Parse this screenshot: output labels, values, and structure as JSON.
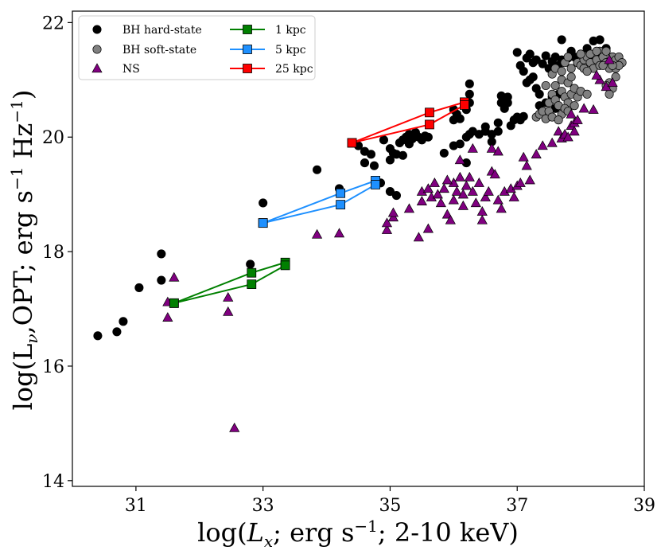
{
  "chart_data": {
    "type": "scatter",
    "title": "",
    "xlabel": "log(L_x; erg s^-1; 2-10 keV)",
    "ylabel": "log(L_ν,OPT; erg s^-1 Hz^-1)",
    "xlim": [
      30,
      39
    ],
    "ylim": [
      13.9,
      22.2
    ],
    "xticks": [
      31,
      33,
      35,
      37,
      39
    ],
    "yticks": [
      14,
      16,
      18,
      20,
      22
    ],
    "legend_position": "top-left",
    "legend": [
      {
        "label": "BH hard-state",
        "marker": "circle",
        "color": "#000000"
      },
      {
        "label": "BH soft-state",
        "marker": "circle",
        "color": "#808080"
      },
      {
        "label": "NS",
        "marker": "triangle",
        "color": "#800080"
      },
      {
        "label": "1 kpc",
        "marker": "square-line",
        "color": "#008000"
      },
      {
        "label": "5 kpc",
        "marker": "square-line",
        "color": "#1E90FF"
      },
      {
        "label": "25 kpc",
        "marker": "square-line",
        "color": "#FF0000"
      }
    ],
    "series": [
      {
        "name": "BH hard-state",
        "marker": "circle",
        "color": "#000000",
        "points": [
          [
            30.4,
            16.53
          ],
          [
            30.7,
            16.6
          ],
          [
            30.8,
            16.78
          ],
          [
            31.05,
            17.37
          ],
          [
            31.4,
            17.96
          ],
          [
            31.4,
            17.5
          ],
          [
            32.8,
            17.78
          ],
          [
            33.0,
            18.85
          ],
          [
            33.85,
            19.43
          ],
          [
            34.2,
            19.1
          ],
          [
            34.5,
            19.85
          ],
          [
            34.6,
            19.55
          ],
          [
            34.6,
            19.75
          ],
          [
            34.7,
            19.7
          ],
          [
            34.75,
            19.5
          ],
          [
            34.85,
            19.2
          ],
          [
            34.9,
            19.95
          ],
          [
            35.0,
            19.8
          ],
          [
            35.0,
            19.6
          ],
          [
            35.05,
            19.72
          ],
          [
            35.0,
            19.05
          ],
          [
            35.1,
            18.98
          ],
          [
            35.1,
            19.7
          ],
          [
            35.15,
            19.9
          ],
          [
            35.2,
            19.95
          ],
          [
            35.25,
            20.0
          ],
          [
            35.3,
            20.05
          ],
          [
            35.3,
            19.88
          ],
          [
            35.35,
            19.97
          ],
          [
            35.4,
            20.08
          ],
          [
            35.45,
            20.0
          ],
          [
            35.5,
            19.95
          ],
          [
            35.55,
            20.02
          ],
          [
            35.6,
            20.0
          ],
          [
            35.2,
            19.68
          ],
          [
            35.85,
            19.72
          ],
          [
            36.0,
            19.85
          ],
          [
            36.0,
            20.3
          ],
          [
            36.0,
            20.48
          ],
          [
            36.1,
            19.88
          ],
          [
            36.2,
            20.0
          ],
          [
            36.2,
            19.55
          ],
          [
            36.25,
            20.05
          ],
          [
            36.3,
            20.1
          ],
          [
            36.25,
            20.6
          ],
          [
            36.25,
            20.75
          ],
          [
            36.25,
            20.93
          ],
          [
            36.2,
            20.48
          ],
          [
            36.4,
            20.05
          ],
          [
            36.5,
            20.1
          ],
          [
            36.5,
            20.18
          ],
          [
            36.6,
            19.92
          ],
          [
            36.6,
            20.05
          ],
          [
            36.7,
            20.1
          ],
          [
            36.7,
            20.25
          ],
          [
            36.75,
            20.6
          ],
          [
            36.75,
            20.72
          ],
          [
            36.8,
            20.5
          ],
          [
            36.85,
            20.6
          ],
          [
            36.85,
            20.7
          ],
          [
            36.9,
            20.2
          ],
          [
            36.95,
            20.3
          ],
          [
            37.0,
            20.35
          ],
          [
            37.05,
            20.3
          ],
          [
            37.1,
            20.36
          ],
          [
            37.0,
            21.48
          ],
          [
            37.05,
            21.25
          ],
          [
            37.1,
            21.15
          ],
          [
            37.15,
            21.38
          ],
          [
            37.2,
            21.45
          ],
          [
            37.25,
            21.05
          ],
          [
            37.25,
            21.3
          ],
          [
            37.3,
            21.35
          ],
          [
            37.4,
            21.28
          ],
          [
            37.45,
            21.42
          ],
          [
            37.5,
            21.2
          ],
          [
            37.55,
            21.32
          ],
          [
            37.6,
            21.4
          ],
          [
            37.65,
            21.25
          ],
          [
            37.7,
            21.7
          ],
          [
            37.7,
            21.35
          ],
          [
            37.8,
            21.38
          ],
          [
            37.85,
            21.5
          ],
          [
            37.9,
            21.4
          ],
          [
            37.95,
            21.3
          ],
          [
            38.0,
            21.45
          ],
          [
            38.05,
            21.38
          ],
          [
            38.1,
            21.55
          ],
          [
            38.15,
            21.35
          ],
          [
            38.2,
            21.68
          ],
          [
            38.25,
            21.48
          ],
          [
            38.3,
            21.7
          ],
          [
            38.35,
            21.4
          ],
          [
            38.4,
            21.55
          ],
          [
            38.45,
            21.3
          ],
          [
            38.5,
            21.4
          ],
          [
            37.35,
            20.55
          ],
          [
            37.45,
            20.6
          ],
          [
            37.4,
            20.45
          ],
          [
            37.55,
            20.7
          ],
          [
            37.65,
            20.75
          ],
          [
            37.6,
            20.5
          ],
          [
            37.15,
            20.95
          ],
          [
            37.2,
            21.0
          ],
          [
            37.3,
            20.85
          ],
          [
            37.35,
            20.75
          ],
          [
            36.1,
            20.32
          ],
          [
            36.05,
            20.4
          ]
        ]
      },
      {
        "name": "BH soft-state",
        "marker": "circle",
        "color": "#808080",
        "points": [
          [
            37.3,
            20.35
          ],
          [
            37.35,
            20.4
          ],
          [
            37.4,
            20.45
          ],
          [
            37.45,
            20.32
          ],
          [
            37.5,
            20.6
          ],
          [
            37.55,
            20.75
          ],
          [
            37.6,
            20.65
          ],
          [
            37.6,
            20.9
          ],
          [
            37.65,
            20.55
          ],
          [
            37.7,
            20.8
          ],
          [
            37.7,
            21.0
          ],
          [
            37.75,
            20.7
          ],
          [
            37.8,
            20.6
          ],
          [
            37.8,
            20.95
          ],
          [
            37.85,
            20.75
          ],
          [
            37.85,
            21.05
          ],
          [
            37.9,
            20.85
          ],
          [
            37.95,
            20.7
          ],
          [
            37.95,
            21.3
          ],
          [
            38.0,
            20.8
          ],
          [
            38.0,
            21.25
          ],
          [
            38.05,
            21.35
          ],
          [
            38.1,
            20.75
          ],
          [
            38.1,
            21.4
          ],
          [
            38.15,
            21.3
          ],
          [
            38.2,
            21.2
          ],
          [
            38.2,
            21.45
          ],
          [
            38.25,
            21.35
          ],
          [
            38.3,
            21.25
          ],
          [
            38.3,
            21.5
          ],
          [
            38.35,
            21.4
          ],
          [
            38.4,
            21.3
          ],
          [
            38.4,
            21.5
          ],
          [
            38.45,
            21.2
          ],
          [
            38.5,
            21.4
          ],
          [
            38.55,
            21.35
          ],
          [
            38.6,
            21.4
          ],
          [
            38.65,
            21.3
          ],
          [
            38.45,
            20.95
          ],
          [
            38.5,
            20.85
          ],
          [
            38.55,
            21.05
          ],
          [
            38.45,
            20.75
          ],
          [
            38.4,
            20.9
          ],
          [
            37.7,
            20.4
          ],
          [
            37.75,
            20.5
          ],
          [
            37.8,
            20.45
          ],
          [
            37.5,
            20.45
          ],
          [
            37.55,
            20.35
          ],
          [
            37.9,
            20.55
          ],
          [
            37.85,
            21.2
          ],
          [
            37.75,
            21.3
          ],
          [
            37.8,
            21.4
          ],
          [
            37.55,
            21.1
          ],
          [
            37.6,
            21.2
          ],
          [
            38.0,
            21.45
          ],
          [
            38.05,
            21.2
          ],
          [
            38.1,
            21.15
          ],
          [
            38.15,
            21.45
          ],
          [
            38.25,
            21.5
          ],
          [
            38.35,
            21.25
          ],
          [
            38.55,
            21.2
          ],
          [
            38.6,
            21.25
          ],
          [
            38.5,
            21.25
          ],
          [
            37.65,
            20.3
          ],
          [
            37.45,
            20.9
          ],
          [
            37.7,
            21.15
          ]
        ]
      },
      {
        "name": "NS",
        "marker": "triangle",
        "color": "#800080",
        "points": [
          [
            31.5,
            16.85
          ],
          [
            31.5,
            17.12
          ],
          [
            31.6,
            17.55
          ],
          [
            32.45,
            17.2
          ],
          [
            32.45,
            16.95
          ],
          [
            32.55,
            14.92
          ],
          [
            33.85,
            18.3
          ],
          [
            34.2,
            18.32
          ],
          [
            34.95,
            18.38
          ],
          [
            34.95,
            18.5
          ],
          [
            35.05,
            18.6
          ],
          [
            35.05,
            18.68
          ],
          [
            35.3,
            18.75
          ],
          [
            35.45,
            18.25
          ],
          [
            35.5,
            18.88
          ],
          [
            35.5,
            19.05
          ],
          [
            35.6,
            19.1
          ],
          [
            35.6,
            18.4
          ],
          [
            35.65,
            18.95
          ],
          [
            35.7,
            19.2
          ],
          [
            35.75,
            19.0
          ],
          [
            35.8,
            18.85
          ],
          [
            35.85,
            19.1
          ],
          [
            35.9,
            18.65
          ],
          [
            35.95,
            18.55
          ],
          [
            36.0,
            18.9
          ],
          [
            36.0,
            19.2
          ],
          [
            36.05,
            19.05
          ],
          [
            36.1,
            19.3
          ],
          [
            36.15,
            19.0
          ],
          [
            36.15,
            18.8
          ],
          [
            36.2,
            19.15
          ],
          [
            36.25,
            19.3
          ],
          [
            36.3,
            19.05
          ],
          [
            36.35,
            18.85
          ],
          [
            36.4,
            19.2
          ],
          [
            36.45,
            18.55
          ],
          [
            36.45,
            18.7
          ],
          [
            36.5,
            18.95
          ],
          [
            36.55,
            19.05
          ],
          [
            36.6,
            19.4
          ],
          [
            36.65,
            19.35
          ],
          [
            36.7,
            18.9
          ],
          [
            36.75,
            18.75
          ],
          [
            36.8,
            19.05
          ],
          [
            36.9,
            19.1
          ],
          [
            36.95,
            18.95
          ],
          [
            37.0,
            19.15
          ],
          [
            37.05,
            19.2
          ],
          [
            37.1,
            19.65
          ],
          [
            37.15,
            19.5
          ],
          [
            37.2,
            19.25
          ],
          [
            37.3,
            19.7
          ],
          [
            37.4,
            19.85
          ],
          [
            37.55,
            19.9
          ],
          [
            37.65,
            20.1
          ],
          [
            37.7,
            19.98
          ],
          [
            37.75,
            20.05
          ],
          [
            37.8,
            20.0
          ],
          [
            37.85,
            20.2
          ],
          [
            37.9,
            20.25
          ],
          [
            37.85,
            20.4
          ],
          [
            37.9,
            20.1
          ],
          [
            37.95,
            20.3
          ],
          [
            38.05,
            20.5
          ],
          [
            38.2,
            20.48
          ],
          [
            38.3,
            21.0
          ],
          [
            38.4,
            20.88
          ],
          [
            38.45,
            21.35
          ],
          [
            38.5,
            20.95
          ],
          [
            38.25,
            21.08
          ],
          [
            36.3,
            19.8
          ],
          [
            36.6,
            19.8
          ],
          [
            36.7,
            19.75
          ],
          [
            35.9,
            19.25
          ],
          [
            36.1,
            19.6
          ]
        ]
      },
      {
        "name": "1 kpc",
        "marker": "square-line",
        "color": "#008000",
        "points": [
          [
            31.6,
            17.1
          ],
          [
            32.82,
            17.63
          ],
          [
            33.35,
            17.81
          ]
        ],
        "extra_segments": [
          [
            [
              31.6,
              17.1
            ],
            [
              32.82,
              17.43
            ],
            [
              33.35,
              17.76
            ]
          ]
        ]
      },
      {
        "name": "5 kpc",
        "marker": "square-line",
        "color": "#1E90FF",
        "points": [
          [
            33.0,
            18.5
          ],
          [
            34.22,
            19.02
          ],
          [
            34.77,
            19.24
          ]
        ],
        "extra_segments": [
          [
            [
              33.0,
              18.5
            ],
            [
              34.22,
              18.82
            ],
            [
              34.77,
              19.17
            ]
          ]
        ]
      },
      {
        "name": "25 kpc",
        "marker": "square-line",
        "color": "#FF0000",
        "points": [
          [
            34.4,
            19.9
          ],
          [
            35.62,
            20.43
          ],
          [
            36.17,
            20.61
          ]
        ],
        "extra_segments": [
          [
            [
              34.4,
              19.9
            ],
            [
              35.62,
              20.22
            ],
            [
              36.17,
              20.56
            ]
          ]
        ]
      }
    ]
  }
}
